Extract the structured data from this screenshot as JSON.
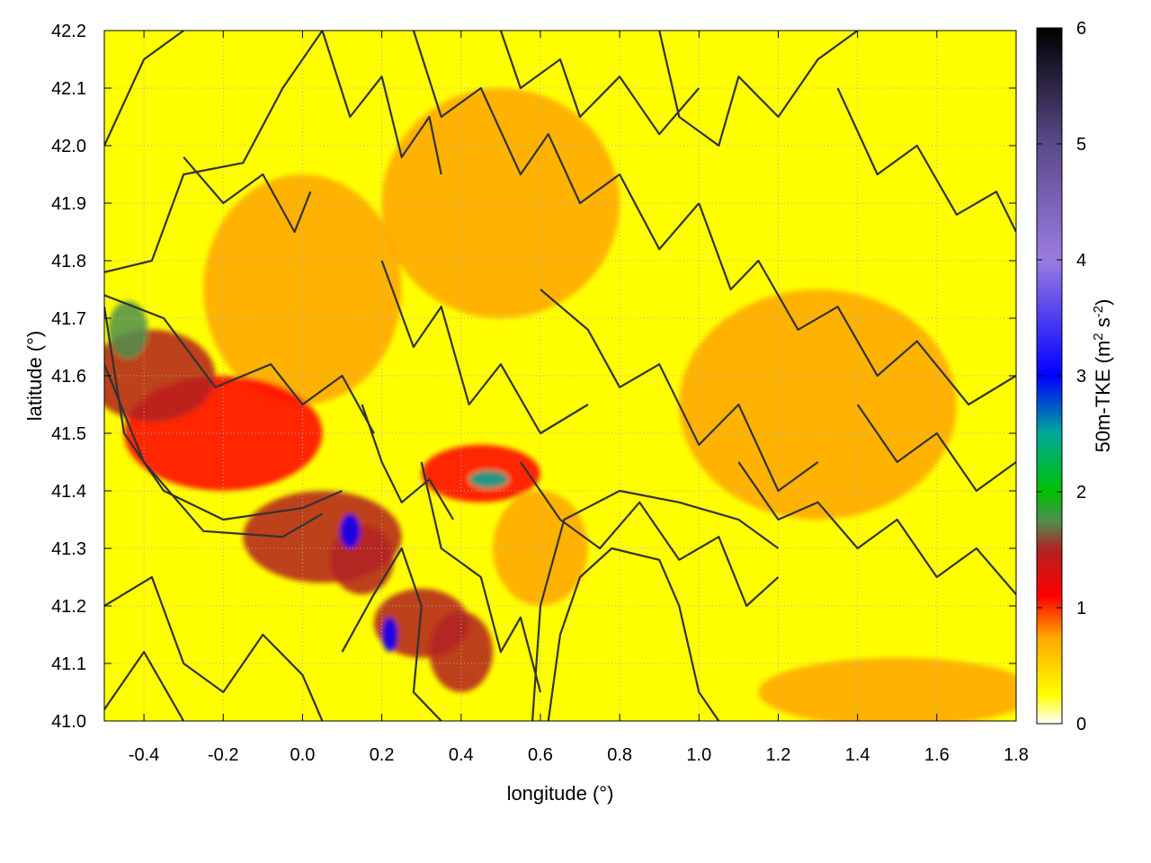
{
  "chart_data": {
    "type": "heatmap",
    "title": "",
    "xlabel": "longitude (°)",
    "ylabel": "latitude (°)",
    "xlim": [
      -0.5,
      1.8
    ],
    "ylim": [
      41.0,
      42.2
    ],
    "xticks": [
      -0.4,
      -0.2,
      0.0,
      0.2,
      0.4,
      0.6,
      0.8,
      1.0,
      1.2,
      1.4,
      1.6,
      1.8
    ],
    "xtick_labels": [
      "-0.4",
      "-0.2",
      "0.0",
      "0.2",
      "0.4",
      "0.6",
      "0.8",
      "1.0",
      "1.2",
      "1.4",
      "1.6",
      "1.8"
    ],
    "yticks": [
      41.0,
      41.1,
      41.2,
      41.3,
      41.4,
      41.5,
      41.6,
      41.7,
      41.8,
      41.9,
      42.0,
      42.1,
      42.2
    ],
    "ytick_labels": [
      "41.0",
      "41.1",
      "41.2",
      "41.3",
      "41.4",
      "41.5",
      "41.6",
      "41.7",
      "41.8",
      "41.9",
      "42.0",
      "42.1",
      "42.2"
    ],
    "grid": true,
    "colorbar": {
      "label": "50m-TKE (m2 s-2)",
      "label_main": "50m-TKE (m",
      "label_sup1": "2",
      "label_mid": " s",
      "label_sup2": "-2",
      "label_end": ")",
      "range": [
        0,
        6
      ],
      "ticks": [
        0,
        1,
        2,
        3,
        4,
        5,
        6
      ],
      "tick_labels": [
        "0",
        "1",
        "2",
        "3",
        "4",
        "5",
        "6"
      ],
      "stops": [
        {
          "v": 0.0,
          "color": "#ffffff"
        },
        {
          "v": 0.25,
          "color": "#ffff00"
        },
        {
          "v": 0.75,
          "color": "#ffa500"
        },
        {
          "v": 1.1,
          "color": "#ff0000"
        },
        {
          "v": 1.5,
          "color": "#b22222"
        },
        {
          "v": 1.75,
          "color": "#4f8f4f"
        },
        {
          "v": 2.0,
          "color": "#00c000"
        },
        {
          "v": 2.5,
          "color": "#00aa99"
        },
        {
          "v": 3.0,
          "color": "#0000ff"
        },
        {
          "v": 4.0,
          "color": "#9a7ce0"
        },
        {
          "v": 5.0,
          "color": "#5a4a8a"
        },
        {
          "v": 6.0,
          "color": "#000000"
        }
      ]
    },
    "tke_features": [
      {
        "lon": -0.38,
        "lat": 41.6,
        "value": 1.2,
        "sx": 0.16,
        "sy": 0.08
      },
      {
        "lon": -0.44,
        "lat": 41.68,
        "value": 1.6,
        "sx": 0.05,
        "sy": 0.05
      },
      {
        "lon": -0.2,
        "lat": 41.5,
        "value": 0.9,
        "sx": 0.25,
        "sy": 0.1
      },
      {
        "lon": 0.05,
        "lat": 41.32,
        "value": 1.3,
        "sx": 0.2,
        "sy": 0.08
      },
      {
        "lon": 0.15,
        "lat": 41.28,
        "value": 1.5,
        "sx": 0.08,
        "sy": 0.06
      },
      {
        "lon": 0.3,
        "lat": 41.17,
        "value": 1.4,
        "sx": 0.12,
        "sy": 0.06
      },
      {
        "lon": 0.4,
        "lat": 41.12,
        "value": 1.2,
        "sx": 0.08,
        "sy": 0.07
      },
      {
        "lon": 0.45,
        "lat": 41.43,
        "value": 1.0,
        "sx": 0.15,
        "sy": 0.05
      },
      {
        "lon": 0.6,
        "lat": 41.3,
        "value": 0.6,
        "sx": 0.12,
        "sy": 0.1
      },
      {
        "lon": 0.0,
        "lat": 41.75,
        "value": 0.6,
        "sx": 0.25,
        "sy": 0.2
      },
      {
        "lon": 0.5,
        "lat": 41.9,
        "value": 0.4,
        "sx": 0.3,
        "sy": 0.2
      },
      {
        "lon": 1.3,
        "lat": 41.55,
        "value": 0.45,
        "sx": 0.35,
        "sy": 0.2
      },
      {
        "lon": 1.5,
        "lat": 41.05,
        "value": 0.3,
        "sx": 0.35,
        "sy": 0.06
      },
      {
        "lon": 0.12,
        "lat": 41.33,
        "value": 2.8,
        "sx": 0.025,
        "sy": 0.03
      },
      {
        "lon": 0.47,
        "lat": 41.42,
        "value": 2.2,
        "sx": 0.05,
        "sy": 0.015
      },
      {
        "lon": 0.22,
        "lat": 41.15,
        "value": 2.6,
        "sx": 0.02,
        "sy": 0.03
      }
    ],
    "contours": [
      [
        [
          -0.5,
          42.0
        ],
        [
          -0.4,
          42.15
        ],
        [
          -0.3,
          42.2
        ]
      ],
      [
        [
          -0.5,
          41.78
        ],
        [
          -0.38,
          41.8
        ],
        [
          -0.3,
          41.95
        ],
        [
          -0.15,
          41.97
        ],
        [
          -0.05,
          42.1
        ],
        [
          0.05,
          42.2
        ]
      ],
      [
        [
          -0.3,
          41.98
        ],
        [
          -0.2,
          41.9
        ],
        [
          -0.1,
          41.95
        ],
        [
          -0.02,
          41.85
        ],
        [
          0.02,
          41.92
        ]
      ],
      [
        [
          0.05,
          42.2
        ],
        [
          0.12,
          42.05
        ],
        [
          0.2,
          42.12
        ],
        [
          0.25,
          41.98
        ],
        [
          0.32,
          42.05
        ],
        [
          0.35,
          41.95
        ]
      ],
      [
        [
          -0.5,
          41.74
        ],
        [
          -0.35,
          41.7
        ],
        [
          -0.22,
          41.58
        ],
        [
          -0.08,
          41.62
        ],
        [
          0.0,
          41.55
        ],
        [
          0.1,
          41.6
        ],
        [
          0.18,
          41.5
        ]
      ],
      [
        [
          -0.5,
          41.72
        ],
        [
          -0.45,
          41.5
        ],
        [
          -0.35,
          41.4
        ],
        [
          -0.2,
          41.35
        ],
        [
          0.0,
          41.37
        ],
        [
          0.1,
          41.4
        ]
      ],
      [
        [
          -0.5,
          41.62
        ],
        [
          -0.4,
          41.45
        ],
        [
          -0.25,
          41.33
        ],
        [
          -0.05,
          41.32
        ],
        [
          0.05,
          41.36
        ]
      ],
      [
        [
          -0.5,
          41.2
        ],
        [
          -0.38,
          41.25
        ],
        [
          -0.3,
          41.1
        ],
        [
          -0.2,
          41.05
        ],
        [
          -0.1,
          41.15
        ],
        [
          0.0,
          41.08
        ],
        [
          0.05,
          41.0
        ]
      ],
      [
        [
          -0.5,
          41.02
        ],
        [
          -0.4,
          41.12
        ],
        [
          -0.3,
          41.0
        ]
      ],
      [
        [
          0.2,
          41.8
        ],
        [
          0.28,
          41.65
        ],
        [
          0.35,
          41.72
        ],
        [
          0.42,
          41.55
        ],
        [
          0.5,
          41.62
        ],
        [
          0.6,
          41.5
        ],
        [
          0.72,
          41.55
        ]
      ],
      [
        [
          0.28,
          42.2
        ],
        [
          0.35,
          42.05
        ],
        [
          0.45,
          42.1
        ],
        [
          0.55,
          41.95
        ],
        [
          0.62,
          42.02
        ],
        [
          0.7,
          41.9
        ],
        [
          0.8,
          41.95
        ],
        [
          0.9,
          41.82
        ],
        [
          1.0,
          41.9
        ]
      ],
      [
        [
          0.5,
          42.2
        ],
        [
          0.55,
          42.1
        ],
        [
          0.65,
          42.15
        ],
        [
          0.7,
          42.05
        ],
        [
          0.8,
          42.12
        ],
        [
          0.9,
          42.02
        ],
        [
          1.0,
          42.1
        ]
      ],
      [
        [
          0.9,
          42.2
        ],
        [
          0.95,
          42.05
        ],
        [
          1.05,
          42.0
        ],
        [
          1.1,
          42.12
        ],
        [
          1.2,
          42.05
        ],
        [
          1.3,
          42.15
        ],
        [
          1.4,
          42.2
        ]
      ],
      [
        [
          0.6,
          41.75
        ],
        [
          0.72,
          41.68
        ],
        [
          0.8,
          41.58
        ],
        [
          0.9,
          41.62
        ],
        [
          1.0,
          41.48
        ],
        [
          1.1,
          41.55
        ],
        [
          1.2,
          41.4
        ],
        [
          1.3,
          41.45
        ]
      ],
      [
        [
          1.0,
          41.9
        ],
        [
          1.08,
          41.75
        ],
        [
          1.15,
          41.8
        ],
        [
          1.25,
          41.68
        ],
        [
          1.35,
          41.72
        ],
        [
          1.45,
          41.6
        ],
        [
          1.55,
          41.66
        ],
        [
          1.68,
          41.55
        ],
        [
          1.8,
          41.6
        ]
      ],
      [
        [
          1.35,
          42.1
        ],
        [
          1.45,
          41.95
        ],
        [
          1.55,
          42.0
        ],
        [
          1.65,
          41.88
        ],
        [
          1.75,
          41.92
        ],
        [
          1.8,
          41.85
        ]
      ],
      [
        [
          0.55,
          41.45
        ],
        [
          0.65,
          41.35
        ],
        [
          0.75,
          41.3
        ],
        [
          0.85,
          41.38
        ],
        [
          0.95,
          41.28
        ],
        [
          1.05,
          41.32
        ],
        [
          1.12,
          41.2
        ],
        [
          1.2,
          41.25
        ]
      ],
      [
        [
          0.62,
          41.0
        ],
        [
          0.65,
          41.15
        ],
        [
          0.7,
          41.25
        ],
        [
          0.78,
          41.3
        ],
        [
          0.9,
          41.28
        ],
        [
          0.95,
          41.2
        ],
        [
          1.0,
          41.05
        ],
        [
          1.05,
          41.0
        ]
      ],
      [
        [
          0.58,
          41.0
        ],
        [
          0.6,
          41.2
        ],
        [
          0.66,
          41.35
        ],
        [
          0.8,
          41.4
        ],
        [
          0.95,
          41.38
        ],
        [
          1.1,
          41.35
        ],
        [
          1.2,
          41.3
        ]
      ],
      [
        [
          1.1,
          41.45
        ],
        [
          1.2,
          41.35
        ],
        [
          1.3,
          41.38
        ],
        [
          1.4,
          41.3
        ],
        [
          1.5,
          41.35
        ],
        [
          1.6,
          41.25
        ],
        [
          1.7,
          41.3
        ],
        [
          1.8,
          41.22
        ]
      ],
      [
        [
          1.4,
          41.55
        ],
        [
          1.5,
          41.45
        ],
        [
          1.6,
          41.5
        ],
        [
          1.7,
          41.4
        ],
        [
          1.8,
          41.45
        ]
      ],
      [
        [
          0.3,
          41.45
        ],
        [
          0.35,
          41.3
        ],
        [
          0.45,
          41.25
        ],
        [
          0.5,
          41.12
        ],
        [
          0.55,
          41.18
        ],
        [
          0.6,
          41.05
        ]
      ],
      [
        [
          0.1,
          41.12
        ],
        [
          0.18,
          41.22
        ],
        [
          0.25,
          41.3
        ],
        [
          0.3,
          41.2
        ],
        [
          0.28,
          41.05
        ],
        [
          0.35,
          41.0
        ]
      ],
      [
        [
          0.15,
          41.55
        ],
        [
          0.2,
          41.45
        ],
        [
          0.25,
          41.38
        ],
        [
          0.32,
          41.42
        ],
        [
          0.38,
          41.35
        ]
      ]
    ]
  }
}
